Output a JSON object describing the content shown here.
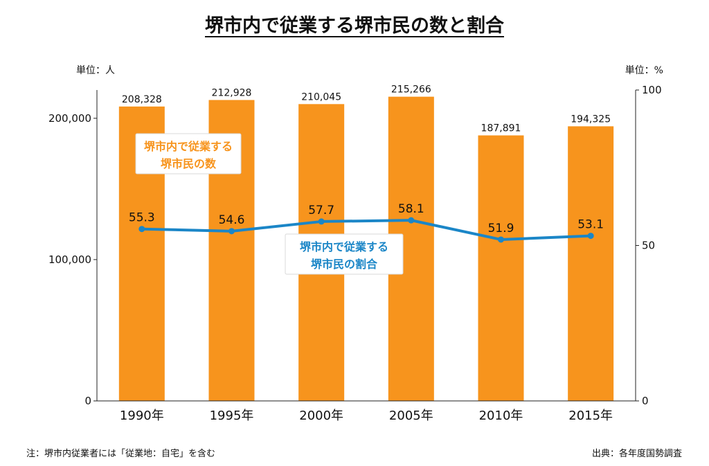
{
  "chart_data": {
    "type": "bar",
    "title": "堺市内で従業する堺市民の数と割合",
    "categories": [
      "1990年",
      "1995年",
      "2000年",
      "2005年",
      "2010年",
      "2015年"
    ],
    "series": [
      {
        "type": "bar",
        "values": [
          208328,
          212928,
          210045,
          215266,
          187891,
          194325
        ],
        "labels": [
          "208,328",
          "212,928",
          "210,045",
          "215,266",
          "187,891",
          "194,325"
        ],
        "axis": "left",
        "color": "#F7941D"
      },
      {
        "type": "line",
        "values": [
          55.3,
          54.6,
          57.7,
          58.1,
          51.9,
          53.1
        ],
        "labels": [
          "55.3",
          "54.6",
          "57.7",
          "58.1",
          "51.9",
          "53.1"
        ],
        "axis": "right",
        "color": "#1B86C7"
      }
    ],
    "left_axis": {
      "unit": "単位：人",
      "ylim": [
        0,
        220000
      ],
      "ticks": [
        0,
        100000,
        200000
      ],
      "tick_labels": [
        "0",
        "100,000",
        "200,000"
      ]
    },
    "right_axis": {
      "unit": "単位：%",
      "ylim": [
        0,
        100
      ],
      "ticks": [
        0,
        50,
        100
      ],
      "tick_labels": [
        "0",
        "50",
        "100"
      ]
    },
    "annotations": {
      "bar_callout": [
        "堺市内で従業する",
        "堺市民の数"
      ],
      "line_callout": [
        "堺市内で従業する",
        "堺市民の割合"
      ]
    },
    "grid": false,
    "legend": "none"
  },
  "notes": {
    "footnote": "注：堺市内従業者には「従業地：自宅」を含む",
    "source": "出典：各年度国勢調査"
  },
  "colors": {
    "bar": "#F7941D",
    "line": "#1B86C7",
    "bar_callout_text": "#F7941D",
    "line_callout_text": "#1B86C7"
  }
}
